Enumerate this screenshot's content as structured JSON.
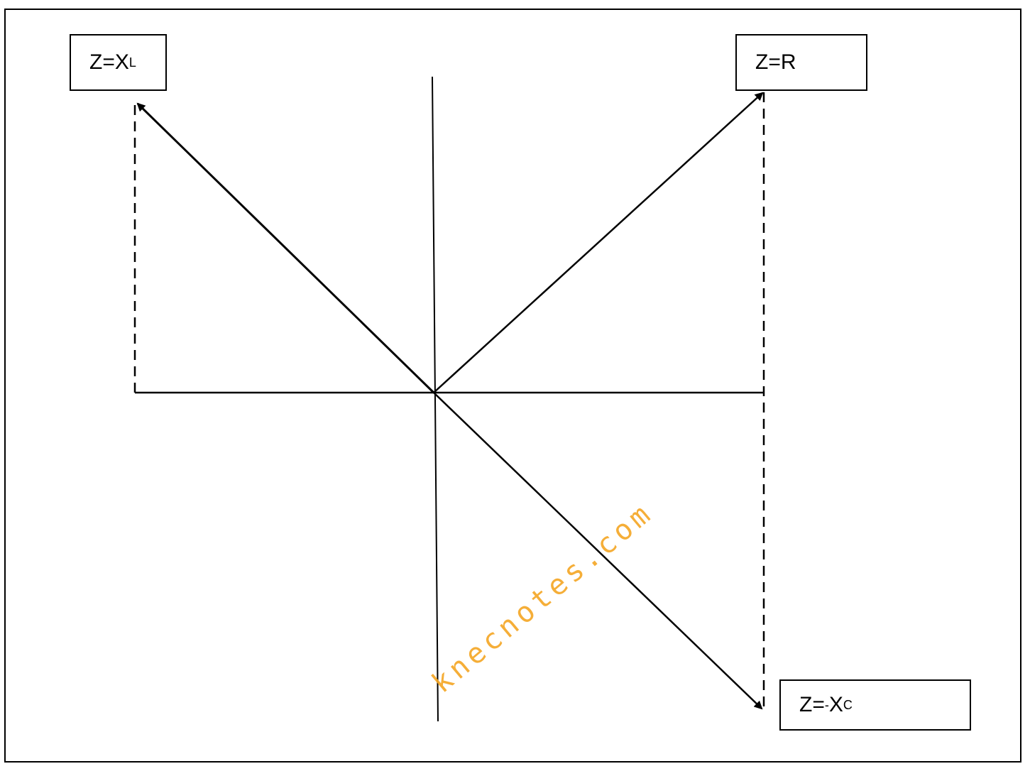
{
  "labels": {
    "inductive": {
      "prefix": "Z= ",
      "symbol": "X",
      "subscript": "L"
    },
    "resistive": {
      "text": "Z=R"
    },
    "capacitive": {
      "prefix": "Z=",
      "superscript": "-",
      "symbol": "X",
      "subscript": "C"
    }
  },
  "watermark": "knecnotes.com"
}
